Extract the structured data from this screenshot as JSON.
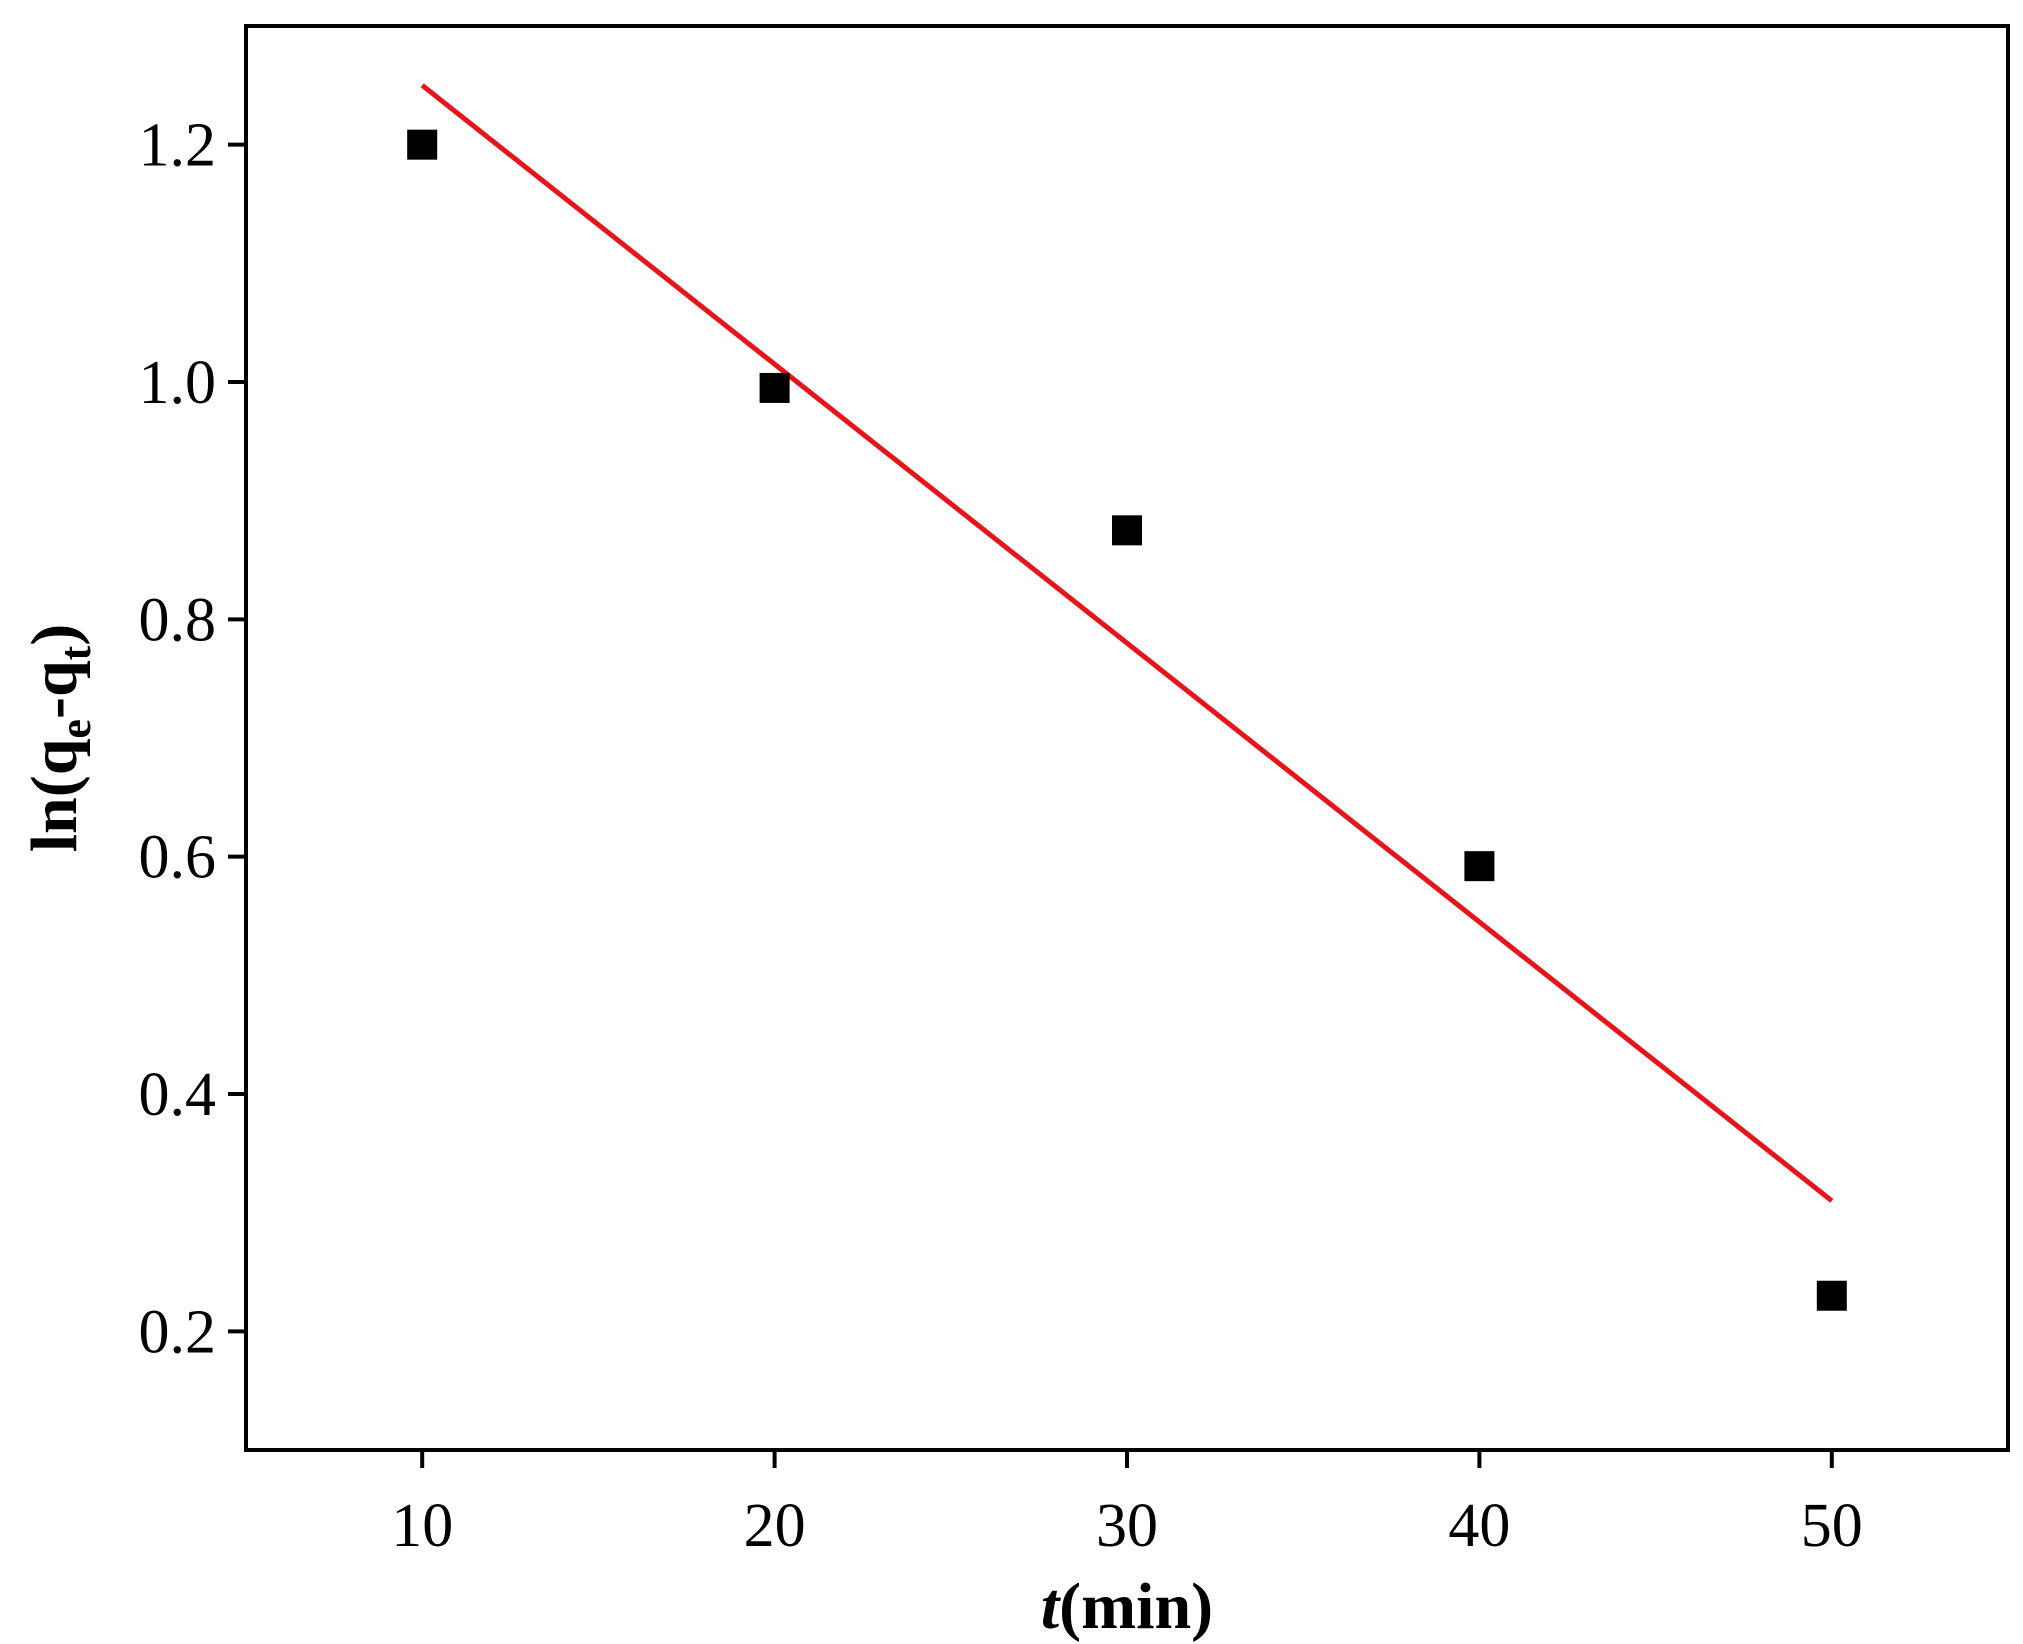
{
  "chart_data": {
    "type": "scatter",
    "title": "",
    "xlabel": {
      "italic": "t",
      "rest": "(min)"
    },
    "ylabel": {
      "prefix": "ln(q",
      "sub1": "e",
      "mid": "-q",
      "sub2": "t",
      "suffix": ")"
    },
    "xlim": [
      5,
      55
    ],
    "ylim": [
      0.1,
      1.3
    ],
    "x_ticks": [
      10,
      20,
      30,
      40,
      50
    ],
    "x_tick_labels": [
      "10",
      "20",
      "30",
      "40",
      "50"
    ],
    "y_ticks": [
      0.2,
      0.4,
      0.6,
      0.8,
      1.0,
      1.2
    ],
    "y_tick_labels": [
      "0.2",
      "0.4",
      "0.6",
      "0.8",
      "1.0",
      "1.2"
    ],
    "grid": false,
    "legend": "none",
    "series": [
      {
        "kind": "scatter",
        "marker": "square",
        "color": "#000000",
        "x": [
          10,
          20,
          30,
          40,
          50
        ],
        "y": [
          1.2,
          0.995,
          0.875,
          0.592,
          0.23
        ]
      },
      {
        "kind": "line",
        "color": "#e8141b",
        "x": [
          10,
          50
        ],
        "y": [
          1.25,
          0.31
        ]
      }
    ]
  }
}
